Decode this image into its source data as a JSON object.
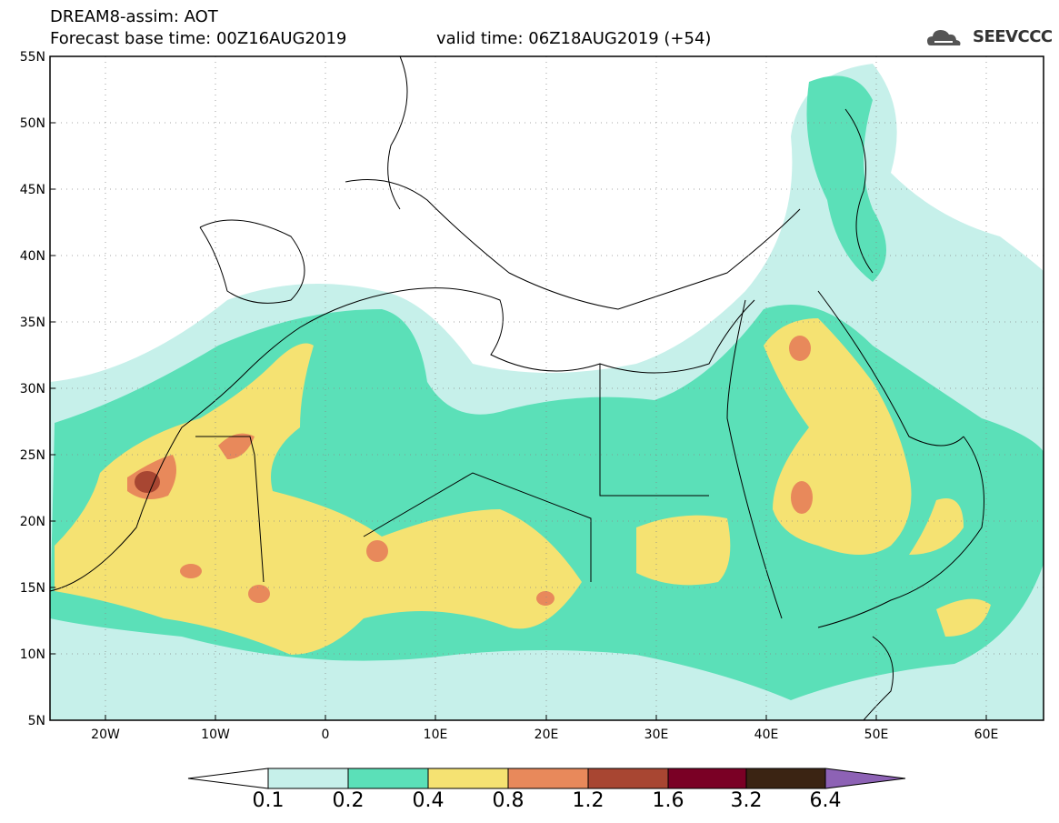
{
  "header": {
    "title": "DREAM8-assim: AOT",
    "base_time": "Forecast base time: 00Z16AUG2019",
    "valid_time": "valid time: 06Z18AUG2019 (+54)",
    "logo_text": "SEEVCCC"
  },
  "map": {
    "lat_labels": [
      "55N",
      "50N",
      "45N",
      "40N",
      "35N",
      "30N",
      "25N",
      "20N",
      "15N",
      "10N",
      "5N"
    ],
    "lon_labels": [
      "20W",
      "10W",
      "0",
      "10E",
      "20E",
      "30E",
      "40E",
      "50E",
      "60E"
    ],
    "extent": {
      "lon_min": -25,
      "lon_max": 65,
      "lat_min": 5,
      "lat_max": 55
    }
  },
  "colorbar": {
    "labels": [
      "0.1",
      "0.2",
      "0.4",
      "0.8",
      "1.2",
      "1.6",
      "3.2",
      "6.4"
    ],
    "colors": [
      "#ffffff",
      "#c6f0ea",
      "#5be0b8",
      "#f5e272",
      "#e8895b",
      "#a84632",
      "#7a0025",
      "#3b2413",
      "#8d62b5"
    ]
  },
  "colors": {
    "c1": "#c6f0ea",
    "c2": "#5be0b8",
    "c3": "#f5e272",
    "c4": "#e8895b",
    "c5": "#a84632"
  }
}
